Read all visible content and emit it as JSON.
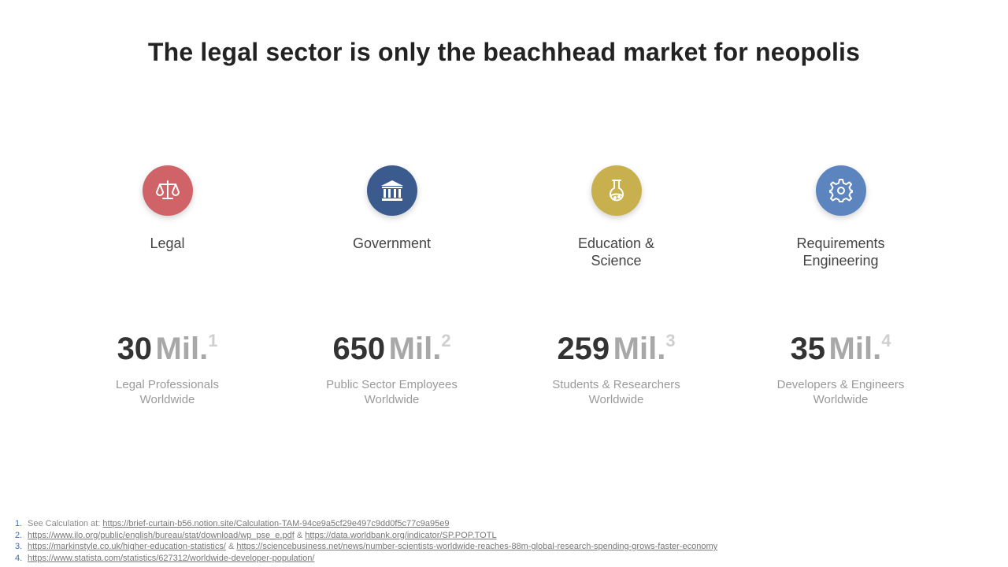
{
  "title": "The legal sector is only the beachhead market for neopolis",
  "colors": {
    "legal": "#cf6368",
    "government": "#3b5a8e",
    "education": "#c9b04e",
    "requirements": "#5c85c0"
  },
  "columns": [
    {
      "icon": "scales-icon",
      "category": "Legal",
      "number": "30",
      "unit": "Mil.",
      "footnote_ref": "1",
      "desc_line1": "Legal Professionals",
      "desc_line2": "Worldwide"
    },
    {
      "icon": "bank-building-icon",
      "category": "Government",
      "number": "650",
      "unit": "Mil.",
      "footnote_ref": "2",
      "desc_line1": "Public Sector Employees",
      "desc_line2": "Worldwide"
    },
    {
      "icon": "flask-icon",
      "category_line1": "Education &",
      "category_line2": "Science",
      "number": "259",
      "unit": "Mil.",
      "footnote_ref": "3",
      "desc_line1": "Students & Researchers",
      "desc_line2": "Worldwide"
    },
    {
      "icon": "gear-icon",
      "category_line1": "Requirements",
      "category_line2": "Engineering",
      "number": "35",
      "unit": "Mil.",
      "footnote_ref": "4",
      "desc_line1": "Developers & Engineers",
      "desc_line2": "Worldwide"
    }
  ],
  "footnotes": [
    {
      "num": "1.",
      "prefix": "See Calculation at: ",
      "link1": "https://brief-curtain-b56.notion.site/Calculation-TAM-94ce9a5cf29e497c9dd0f5c77c9a95e9"
    },
    {
      "num": "2.",
      "link1": "https://www.ilo.org/public/english/bureau/stat/download/wp_pse_e.pdf",
      "sep": " & ",
      "link2": "https://data.worldbank.org/indicator/SP.POP.TOTL"
    },
    {
      "num": "3.",
      "link1": "https://markinstyle.co.uk/higher-education-statistics/",
      "sep": " & ",
      "link2": "https://sciencebusiness.net/news/number-scientists-worldwide-reaches-88m-global-research-spending-grows-faster-economy"
    },
    {
      "num": "4.",
      "link1": "https://www.statista.com/statistics/627312/worldwide-developer-population/"
    }
  ]
}
